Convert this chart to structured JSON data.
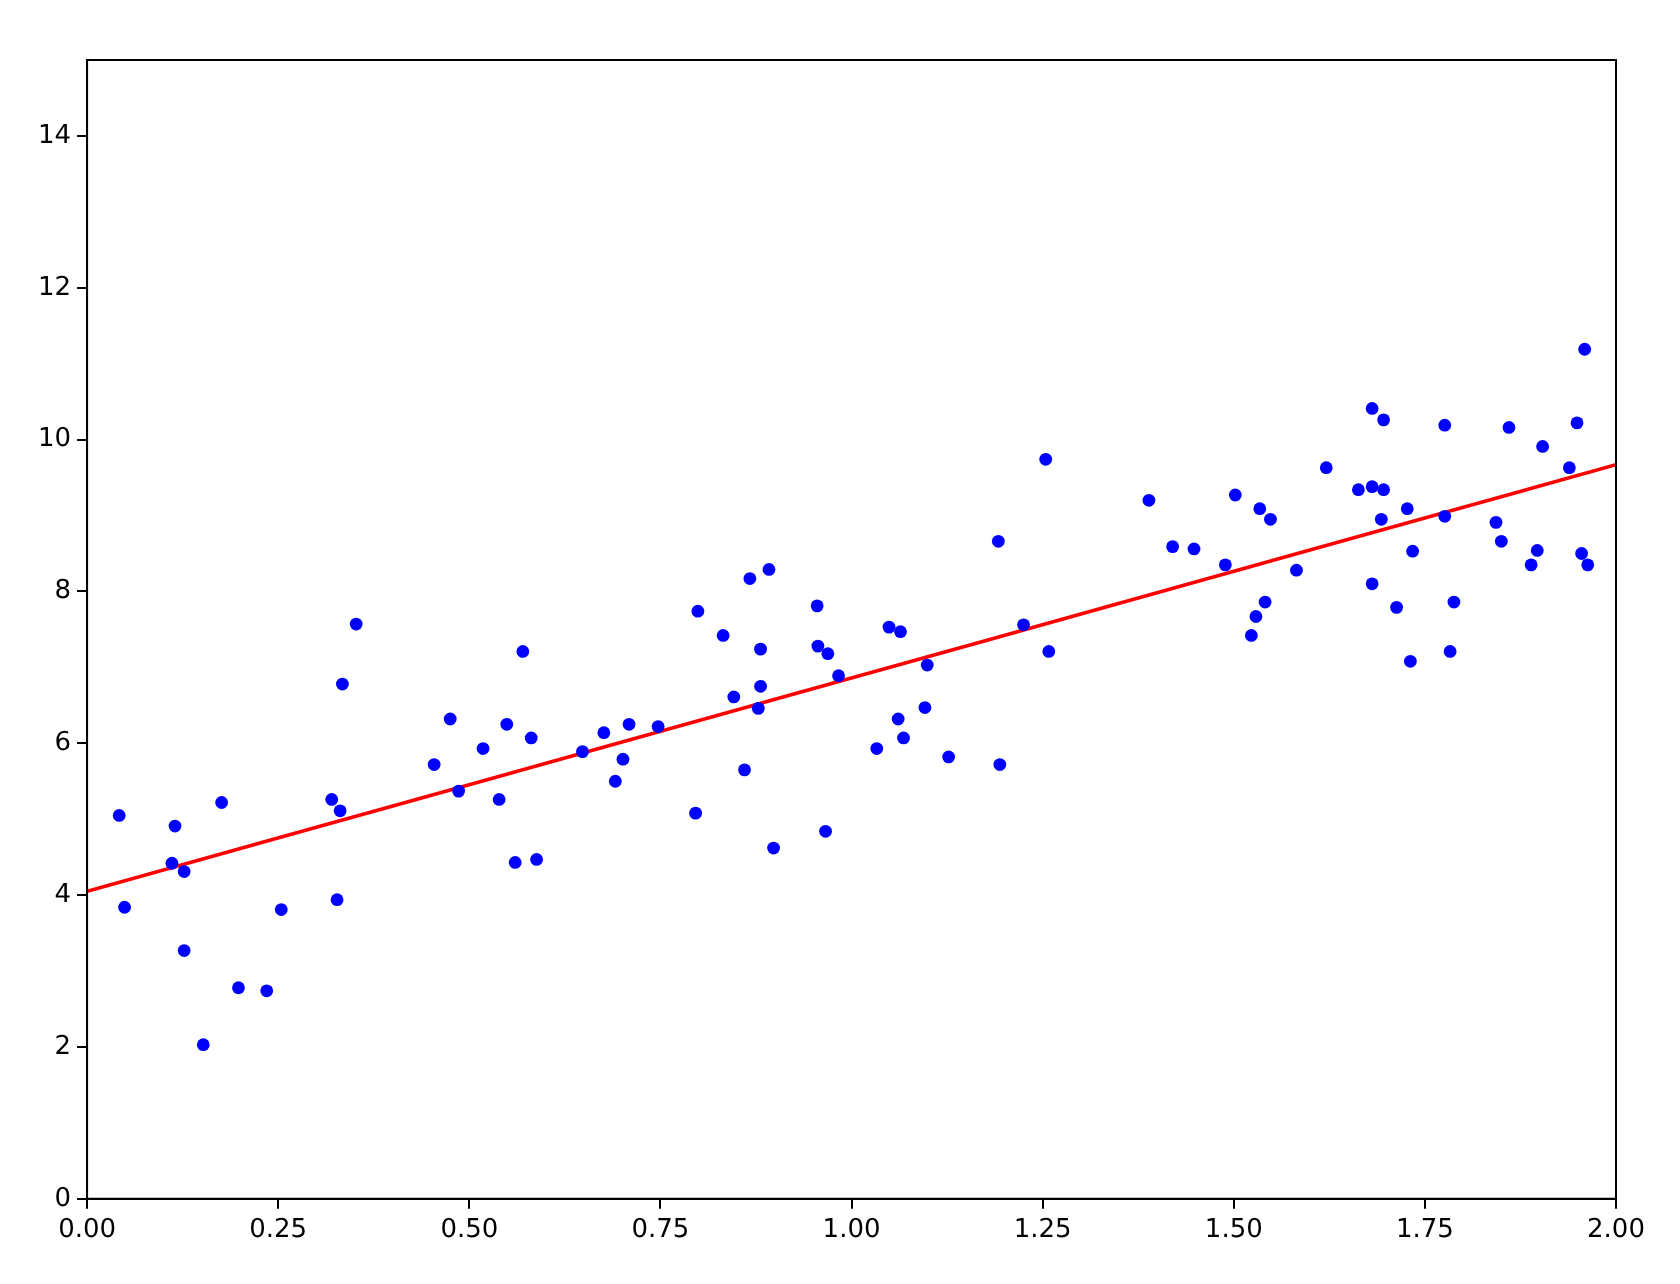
{
  "chart_data": {
    "type": "scatter",
    "xlim": [
      0,
      2
    ],
    "xticks": [
      {
        "value": 0,
        "label": "0.00"
      },
      {
        "value": 0.25,
        "label": "0.25"
      },
      {
        "value": 0.5,
        "label": "0.50"
      },
      {
        "value": 0.75,
        "label": "0.75"
      },
      {
        "value": 1,
        "label": "1.00"
      },
      {
        "value": 1.25,
        "label": "1.25"
      },
      {
        "value": 1.5,
        "label": "1.50"
      },
      {
        "value": 1.75,
        "label": "1.75"
      },
      {
        "value": 2,
        "label": "2.00"
      }
    ],
    "ylim": [
      0,
      15
    ],
    "yticks": [
      0,
      2,
      4,
      6,
      8,
      10,
      12,
      14
    ],
    "grid": false,
    "legend": false,
    "series": [
      {
        "marker": "circle",
        "color": "#0000ff",
        "x": [
          0.352,
          0.334,
          0.475,
          0.042,
          0.115,
          0.176,
          0.32,
          0.331,
          0.454,
          0.486,
          0.111,
          0.127,
          0.049,
          0.254,
          0.327,
          0.127,
          0.198,
          0.235,
          0.152,
          0.867,
          0.892,
          0.799,
          0.955,
          0.832,
          0.881,
          0.956,
          0.969,
          0.57,
          0.983,
          0.846,
          0.881,
          0.878,
          0.549,
          0.581,
          0.518,
          0.539,
          0.648,
          0.676,
          0.709,
          0.747,
          0.701,
          0.691,
          0.86,
          0.796,
          0.966,
          0.898,
          0.56,
          0.588,
          1.254,
          1.389,
          1.42,
          1.448,
          1.489,
          1.192,
          1.049,
          1.064,
          1.225,
          1.258,
          1.099,
          1.096,
          1.061,
          1.068,
          1.033,
          1.127,
          1.194,
          1.959,
          1.681,
          1.696,
          1.776,
          1.86,
          1.949,
          1.904,
          1.621,
          1.939,
          1.663,
          1.681,
          1.696,
          1.502,
          1.534,
          1.548,
          1.727,
          1.693,
          1.776,
          1.843,
          1.85,
          1.582,
          1.734,
          1.897,
          1.889,
          1.955,
          1.963,
          1.681,
          1.541,
          1.529,
          1.523,
          1.713,
          1.788,
          1.731,
          1.783
        ],
        "values": [
          7.57,
          6.78,
          6.32,
          5.05,
          4.91,
          5.22,
          5.26,
          5.11,
          5.72,
          5.37,
          4.42,
          4.31,
          3.84,
          3.81,
          3.94,
          3.27,
          2.78,
          2.74,
          2.03,
          8.17,
          8.29,
          7.74,
          7.81,
          7.42,
          7.24,
          7.28,
          7.18,
          7.21,
          6.89,
          6.61,
          6.75,
          6.46,
          6.25,
          6.07,
          5.93,
          5.26,
          5.89,
          6.14,
          6.25,
          6.22,
          5.79,
          5.5,
          5.65,
          5.08,
          4.84,
          4.62,
          4.43,
          4.47,
          9.74,
          9.2,
          8.59,
          8.56,
          8.35,
          8.66,
          7.53,
          7.47,
          7.56,
          7.21,
          7.03,
          6.47,
          6.32,
          6.07,
          5.93,
          5.82,
          5.72,
          11.19,
          10.41,
          10.26,
          10.19,
          10.16,
          10.22,
          9.91,
          9.63,
          9.63,
          9.34,
          9.38,
          9.34,
          9.27,
          9.09,
          8.95,
          9.09,
          8.95,
          8.99,
          8.91,
          8.66,
          8.28,
          8.53,
          8.54,
          8.35,
          8.5,
          8.35,
          8.1,
          7.86,
          7.67,
          7.42,
          7.79,
          7.86,
          7.08,
          7.21
        ]
      },
      {
        "type": "line",
        "marker": "none",
        "line_style": "solid",
        "color": "#ff0000",
        "x": [
          0,
          2
        ],
        "values": [
          4.05,
          9.67
        ]
      }
    ]
  }
}
